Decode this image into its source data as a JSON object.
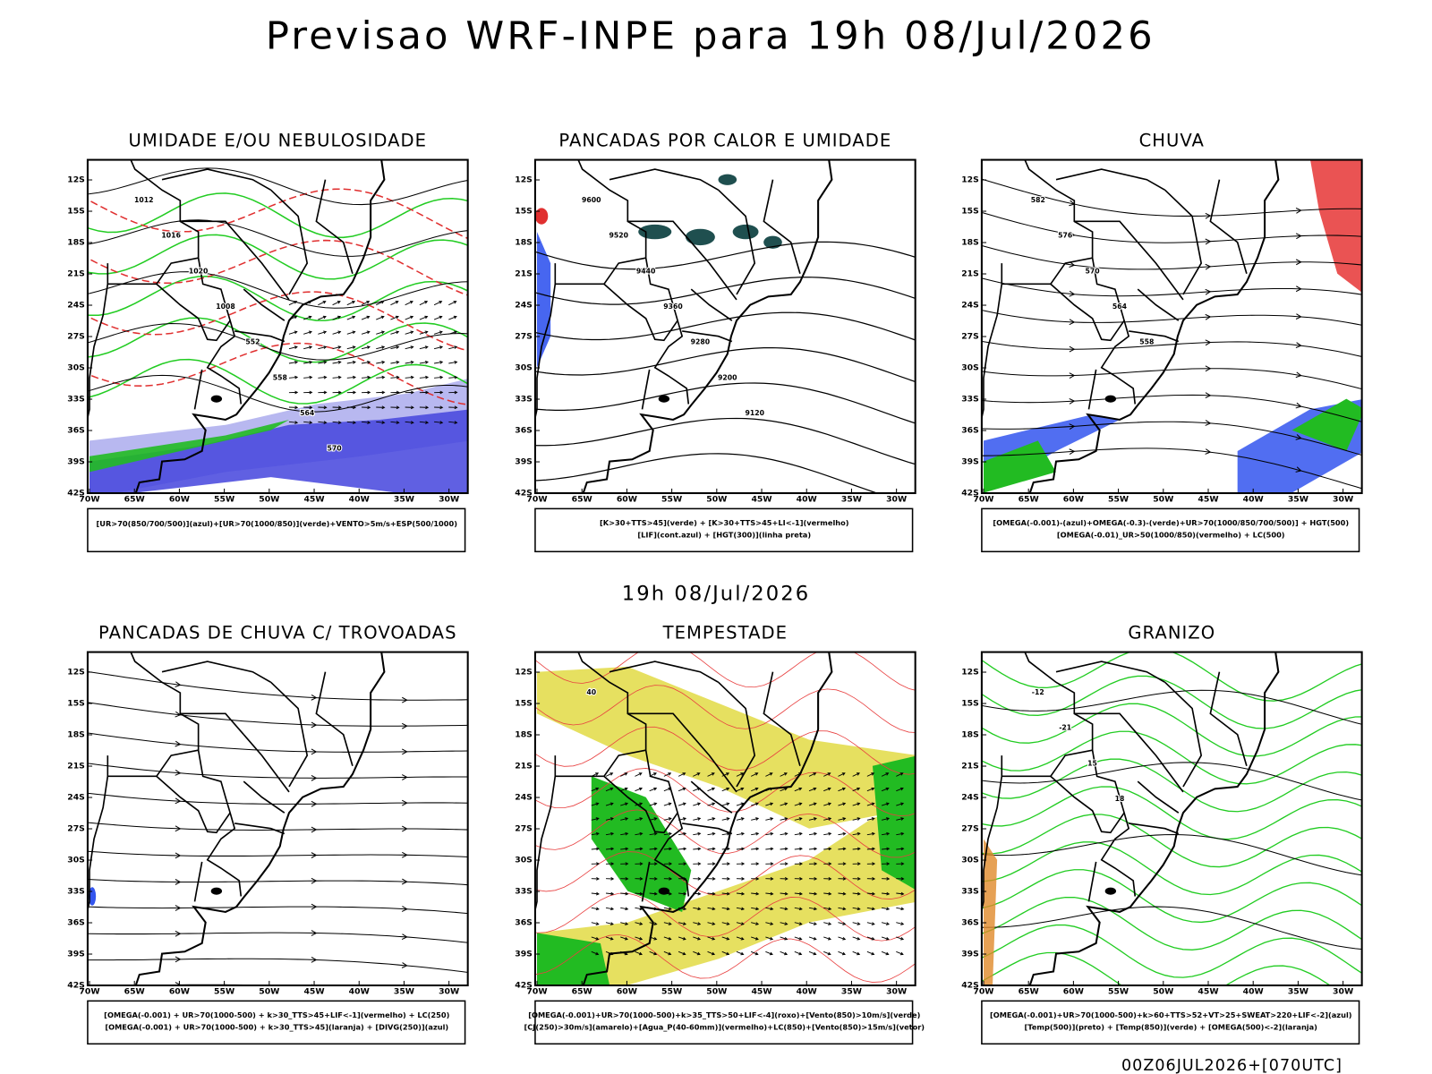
{
  "title": "Previsao WRF-INPE  para 19h 08/Jul/2026",
  "subtitle": "19h 08/Jul/2026",
  "footer": "00Z06JUL2026+[070UTC]",
  "lat_ticks": [
    "12S",
    "15S",
    "18S",
    "21S",
    "24S",
    "27S",
    "30S",
    "33S",
    "36S",
    "39S",
    "42S"
  ],
  "lon_ticks": [
    "70W",
    "65W",
    "60W",
    "55W",
    "50W",
    "45W",
    "40W",
    "35W",
    "30W"
  ],
  "panels": [
    {
      "title": "UMIDADE E/OU NEBULOSIDADE",
      "legend": [
        "[UR>70(850/700/500)](azul)+[UR>70(1000/850)](verde)+VENTO>5m/s+ESP(500/1000)"
      ],
      "contour_labels": [
        "1012",
        "1016",
        "1020",
        "1008",
        "552",
        "558",
        "564",
        "570"
      ]
    },
    {
      "title": "PANCADAS POR CALOR E UMIDADE",
      "legend": [
        "[K>30+TTS>45](verde) + [K>30+TTS>45+LI<-1](vermelho)",
        "[LIF](cont.azul) + [HGT(300)](linha preta)"
      ],
      "contour_labels": [
        "9600",
        "9520",
        "9440",
        "9360",
        "9280",
        "9200",
        "9120"
      ]
    },
    {
      "title": "CHUVA",
      "legend": [
        "[OMEGA(-0.001)-(azul)+OMEGA(-0.3)-(verde)+UR>70(1000/850/700/500)] + HGT(500)",
        "[OMEGA(-0.01)_UR>50(1000/850)(vermelho) + LC(500)"
      ],
      "contour_labels": [
        "582",
        "576",
        "570",
        "564",
        "558"
      ]
    },
    {
      "title": "PANCADAS DE CHUVA C/ TROVOADAS",
      "legend": [
        "[OMEGA(-0.001) + UR>70(1000-500) + k>30_TTS>45+LIF<-1](vermelho) + LC(250)",
        "[OMEGA(-0.001) + UR>70(1000-500) + k>30_TTS>45](laranja) + [DIVG(250)](azul)"
      ]
    },
    {
      "title": "TEMPESTADE",
      "legend": [
        "[OMEGA(-0.001)+UR>70(1000-500)+k>35_TTS>50+LIF<-4](roxo)+[Vento(850)>10m/s](verde)",
        "[CJ(250)>30m/s](amarelo)+[Agua_P(40-60mm)](vermelho)+LC(850)+[Vento(850)>15m/s](vetor)"
      ],
      "contour_labels": [
        "40"
      ]
    },
    {
      "title": "GRANIZO",
      "legend": [
        "[OMEGA(-0.001)+UR>70(1000-500)+k>60+TTS>52+VT>25+SWEAT>220+LIF<-2](azul)",
        "[Temp(500)](preto) + [Temp(850)](verde) + [OMEGA(500)<-2](laranja)"
      ],
      "contour_labels": [
        "-12",
        "-21",
        "15",
        "18"
      ]
    }
  ]
}
